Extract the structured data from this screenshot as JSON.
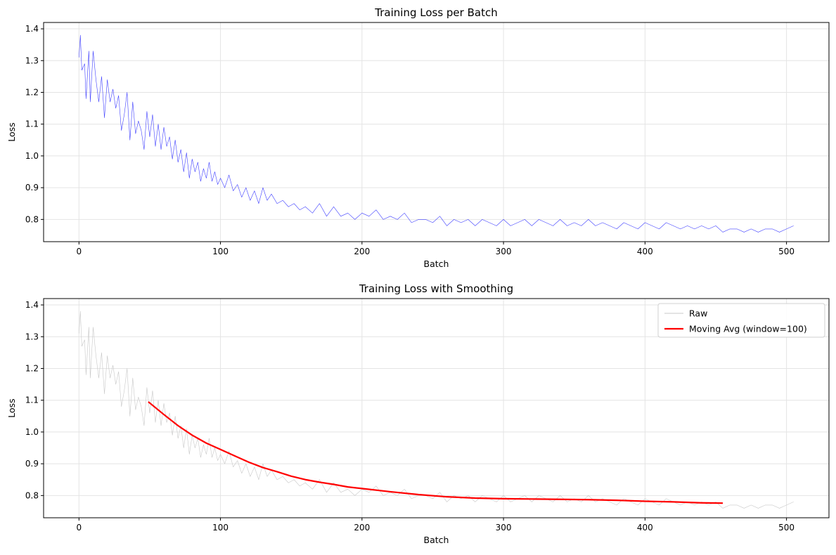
{
  "chart_data": [
    {
      "type": "line",
      "title": "Training Loss per Batch",
      "xlabel": "Batch",
      "ylabel": "Loss",
      "xlim": [
        -25,
        530
      ],
      "ylim": [
        0.73,
        1.42
      ],
      "xticks": [
        0,
        100,
        200,
        300,
        400,
        500
      ],
      "xtick_labels": [
        "0",
        "100",
        "200",
        "300",
        "400",
        "500"
      ],
      "yticks": [
        0.8,
        0.9,
        1.0,
        1.1,
        1.2,
        1.3,
        1.4
      ],
      "ytick_labels": [
        "0.8",
        "0.9",
        "1.0",
        "1.1",
        "1.2",
        "1.3",
        "1.4"
      ],
      "grid": true,
      "legend": null,
      "series": [
        {
          "color": "#0000ff",
          "x": [
            0,
            1,
            2,
            4,
            5,
            7,
            8,
            10,
            12,
            14,
            16,
            18,
            20,
            22,
            24,
            26,
            28,
            30,
            32,
            34,
            36,
            38,
            40,
            42,
            44,
            46,
            48,
            50,
            52,
            54,
            56,
            58,
            60,
            62,
            64,
            66,
            68,
            70,
            72,
            74,
            76,
            78,
            80,
            82,
            84,
            86,
            88,
            90,
            92,
            94,
            96,
            98,
            100,
            103,
            106,
            109,
            112,
            115,
            118,
            121,
            124,
            127,
            130,
            133,
            136,
            140,
            144,
            148,
            152,
            156,
            160,
            165,
            170,
            175,
            180,
            185,
            190,
            195,
            200,
            205,
            210,
            215,
            220,
            225,
            230,
            235,
            240,
            245,
            250,
            255,
            260,
            265,
            270,
            275,
            280,
            285,
            290,
            295,
            300,
            305,
            310,
            315,
            320,
            325,
            330,
            335,
            340,
            345,
            350,
            355,
            360,
            365,
            370,
            375,
            380,
            385,
            390,
            395,
            400,
            405,
            410,
            415,
            420,
            425,
            430,
            435,
            440,
            445,
            450,
            455,
            460,
            465,
            470,
            475,
            480,
            485,
            490,
            495,
            500,
            505
          ],
          "y": [
            1.31,
            1.38,
            1.27,
            1.29,
            1.18,
            1.33,
            1.17,
            1.33,
            1.24,
            1.17,
            1.25,
            1.12,
            1.24,
            1.17,
            1.21,
            1.15,
            1.19,
            1.08,
            1.13,
            1.2,
            1.05,
            1.17,
            1.07,
            1.11,
            1.08,
            1.02,
            1.14,
            1.06,
            1.13,
            1.03,
            1.1,
            1.02,
            1.09,
            1.03,
            1.06,
            0.99,
            1.05,
            0.98,
            1.02,
            0.95,
            1.01,
            0.93,
            0.99,
            0.95,
            0.98,
            0.92,
            0.96,
            0.93,
            0.98,
            0.92,
            0.95,
            0.91,
            0.93,
            0.9,
            0.94,
            0.89,
            0.91,
            0.87,
            0.9,
            0.86,
            0.89,
            0.85,
            0.9,
            0.86,
            0.88,
            0.85,
            0.86,
            0.84,
            0.85,
            0.83,
            0.84,
            0.82,
            0.85,
            0.81,
            0.84,
            0.81,
            0.82,
            0.8,
            0.82,
            0.81,
            0.83,
            0.8,
            0.81,
            0.8,
            0.82,
            0.79,
            0.8,
            0.8,
            0.79,
            0.81,
            0.78,
            0.8,
            0.79,
            0.8,
            0.78,
            0.8,
            0.79,
            0.78,
            0.8,
            0.78,
            0.79,
            0.8,
            0.78,
            0.8,
            0.79,
            0.78,
            0.8,
            0.78,
            0.79,
            0.78,
            0.8,
            0.78,
            0.79,
            0.78,
            0.77,
            0.79,
            0.78,
            0.77,
            0.79,
            0.78,
            0.77,
            0.79,
            0.78,
            0.77,
            0.78,
            0.77,
            0.78,
            0.77,
            0.78,
            0.76,
            0.77,
            0.77,
            0.76,
            0.77,
            0.76,
            0.77,
            0.77,
            0.76,
            0.77,
            0.78
          ]
        }
      ]
    },
    {
      "type": "line",
      "title": "Training Loss with Smoothing",
      "xlabel": "Batch",
      "ylabel": "Loss",
      "xlim": [
        -25,
        530
      ],
      "ylim": [
        0.73,
        1.42
      ],
      "xticks": [
        0,
        100,
        200,
        300,
        400,
        500
      ],
      "xtick_labels": [
        "0",
        "100",
        "200",
        "300",
        "400",
        "500"
      ],
      "yticks": [
        0.8,
        0.9,
        1.0,
        1.1,
        1.2,
        1.3,
        1.4
      ],
      "ytick_labels": [
        "0.8",
        "0.9",
        "1.0",
        "1.1",
        "1.2",
        "1.3",
        "1.4"
      ],
      "grid": true,
      "legend": "top-right",
      "series": [
        {
          "name": "Raw",
          "color": "#c8c8c8",
          "x": [
            0,
            1,
            2,
            4,
            5,
            7,
            8,
            10,
            12,
            14,
            16,
            18,
            20,
            22,
            24,
            26,
            28,
            30,
            32,
            34,
            36,
            38,
            40,
            42,
            44,
            46,
            48,
            50,
            52,
            54,
            56,
            58,
            60,
            62,
            64,
            66,
            68,
            70,
            72,
            74,
            76,
            78,
            80,
            82,
            84,
            86,
            88,
            90,
            92,
            94,
            96,
            98,
            100,
            103,
            106,
            109,
            112,
            115,
            118,
            121,
            124,
            127,
            130,
            133,
            136,
            140,
            144,
            148,
            152,
            156,
            160,
            165,
            170,
            175,
            180,
            185,
            190,
            195,
            200,
            205,
            210,
            215,
            220,
            225,
            230,
            235,
            240,
            245,
            250,
            255,
            260,
            265,
            270,
            275,
            280,
            285,
            290,
            295,
            300,
            305,
            310,
            315,
            320,
            325,
            330,
            335,
            340,
            345,
            350,
            355,
            360,
            365,
            370,
            375,
            380,
            385,
            390,
            395,
            400,
            405,
            410,
            415,
            420,
            425,
            430,
            435,
            440,
            445,
            450,
            455,
            460,
            465,
            470,
            475,
            480,
            485,
            490,
            495,
            500,
            505
          ],
          "y": [
            1.31,
            1.38,
            1.27,
            1.29,
            1.18,
            1.33,
            1.17,
            1.33,
            1.24,
            1.17,
            1.25,
            1.12,
            1.24,
            1.17,
            1.21,
            1.15,
            1.19,
            1.08,
            1.13,
            1.2,
            1.05,
            1.17,
            1.07,
            1.11,
            1.08,
            1.02,
            1.14,
            1.06,
            1.13,
            1.03,
            1.1,
            1.02,
            1.09,
            1.03,
            1.06,
            0.99,
            1.05,
            0.98,
            1.02,
            0.95,
            1.01,
            0.93,
            0.99,
            0.95,
            0.98,
            0.92,
            0.96,
            0.93,
            0.98,
            0.92,
            0.95,
            0.91,
            0.93,
            0.9,
            0.94,
            0.89,
            0.91,
            0.87,
            0.9,
            0.86,
            0.89,
            0.85,
            0.9,
            0.86,
            0.88,
            0.85,
            0.86,
            0.84,
            0.85,
            0.83,
            0.84,
            0.82,
            0.85,
            0.81,
            0.84,
            0.81,
            0.82,
            0.8,
            0.82,
            0.81,
            0.83,
            0.8,
            0.81,
            0.8,
            0.82,
            0.79,
            0.8,
            0.8,
            0.79,
            0.81,
            0.78,
            0.8,
            0.79,
            0.8,
            0.78,
            0.8,
            0.79,
            0.78,
            0.8,
            0.78,
            0.79,
            0.8,
            0.78,
            0.8,
            0.79,
            0.78,
            0.8,
            0.78,
            0.79,
            0.78,
            0.8,
            0.78,
            0.79,
            0.78,
            0.77,
            0.79,
            0.78,
            0.77,
            0.79,
            0.78,
            0.77,
            0.79,
            0.78,
            0.77,
            0.78,
            0.77,
            0.78,
            0.77,
            0.78,
            0.76,
            0.77,
            0.77,
            0.76,
            0.77,
            0.76,
            0.77,
            0.77,
            0.76,
            0.77,
            0.78
          ]
        },
        {
          "name": "Moving Avg (window=100)",
          "color": "#ff0000",
          "x": [
            49,
            60,
            70,
            80,
            90,
            100,
            110,
            120,
            130,
            140,
            150,
            160,
            170,
            180,
            190,
            200,
            220,
            240,
            260,
            280,
            300,
            320,
            340,
            360,
            380,
            400,
            420,
            440,
            455
          ],
          "y": [
            1.095,
            1.055,
            1.02,
            0.99,
            0.965,
            0.945,
            0.925,
            0.905,
            0.888,
            0.875,
            0.861,
            0.85,
            0.842,
            0.835,
            0.827,
            0.822,
            0.812,
            0.803,
            0.796,
            0.792,
            0.79,
            0.789,
            0.788,
            0.787,
            0.785,
            0.782,
            0.78,
            0.777,
            0.776
          ]
        }
      ]
    }
  ]
}
